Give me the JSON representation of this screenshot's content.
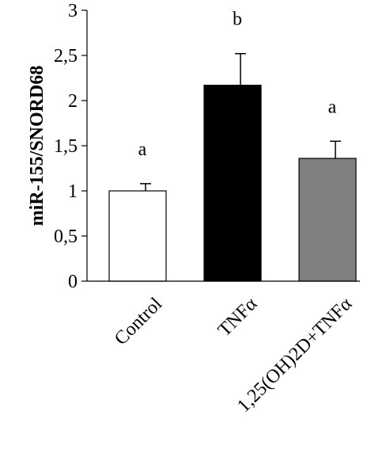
{
  "chart_data": {
    "type": "bar",
    "categories": [
      "Control",
      "TNFα",
      "1,25(OH)2D+TNFα"
    ],
    "values": [
      1.0,
      2.17,
      1.36
    ],
    "errors": [
      0.08,
      0.35,
      0.19
    ],
    "significance": [
      "a",
      "b",
      "a"
    ],
    "bar_colors": [
      "#ffffff",
      "#000000",
      "#808080"
    ],
    "ylabel": "miR-155/SNORD68",
    "ylim": [
      0,
      3
    ],
    "yticks": [
      0,
      0.5,
      1,
      1.5,
      2,
      2.5,
      3
    ],
    "ytick_labels": [
      "0",
      "0,5",
      "1",
      "1,5",
      "2",
      "2,5",
      "3"
    ],
    "grid": false,
    "legend": "none"
  }
}
